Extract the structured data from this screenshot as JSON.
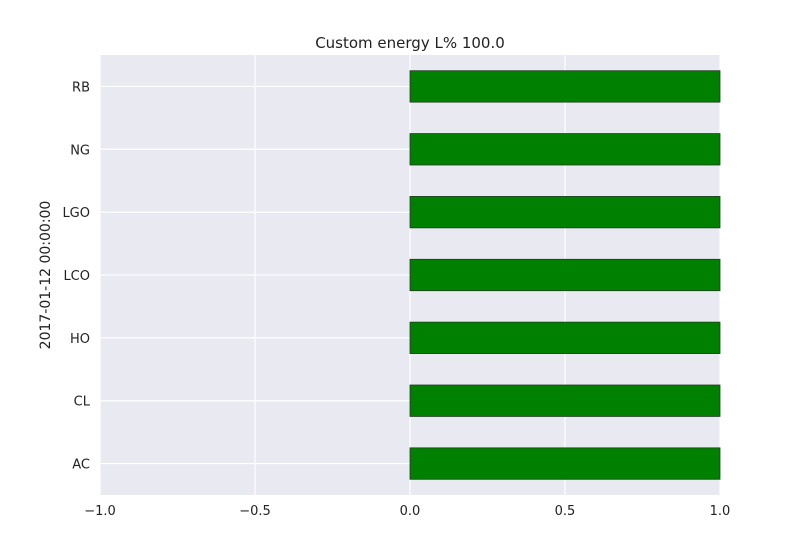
{
  "chart_data": {
    "type": "bar",
    "orientation": "horizontal",
    "title": "Custom energy L% 100.0",
    "xlabel": "",
    "ylabel": "2017-01-12 00:00:00",
    "categories": [
      "AC",
      "CL",
      "HO",
      "LCO",
      "LGO",
      "NG",
      "RB"
    ],
    "values": [
      1.0,
      1.0,
      1.0,
      1.0,
      1.0,
      1.0,
      1.0
    ],
    "xlim": [
      -1.0,
      1.0
    ],
    "xticks": [
      -1.0,
      -0.5,
      0.0,
      0.5,
      1.0
    ],
    "xtick_labels": [
      "−1.0",
      "−0.5",
      "0.0",
      "0.5",
      "1.0"
    ],
    "grid": true,
    "bar_color": "#008000",
    "background_color": "#e9e9f1"
  }
}
